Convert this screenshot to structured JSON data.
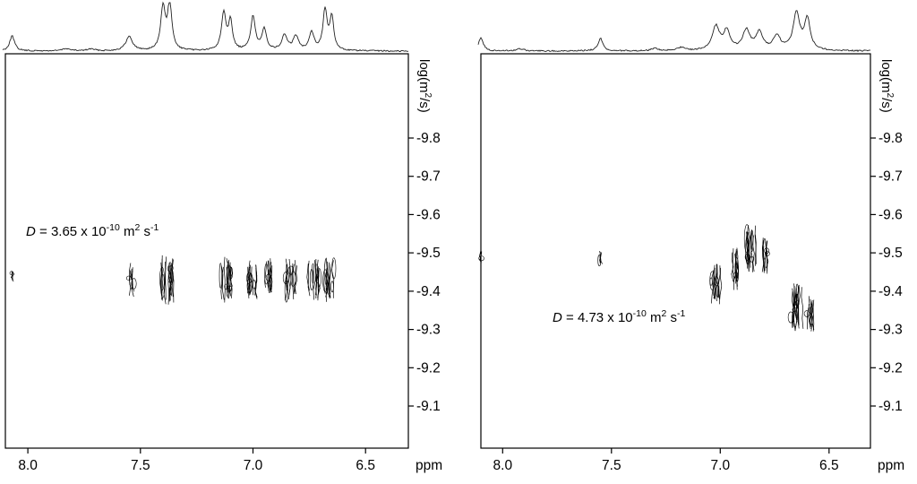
{
  "figure": {
    "description": "Two DOSY NMR spectra (2D diffusion contour plots with 1D proton trace on top)"
  },
  "chart_data": [
    {
      "type": "scatter",
      "name": "dosy-panel-left",
      "title": "",
      "xlabel": "ppm",
      "ylabel": "log(m2/s)",
      "ylabel_parts": {
        "pre": "log(m",
        "sup": "2",
        "post": "/s)"
      },
      "xlim": [
        8.1,
        6.31
      ],
      "ylim": [
        -10.02,
        -8.99
      ],
      "x_ticks": [
        "8.0",
        "7.5",
        "7.0",
        "6.5"
      ],
      "x_tick_values": [
        8.0,
        7.5,
        7.0,
        6.5
      ],
      "y_ticks": [
        "-9.8",
        "-9.7",
        "-9.6",
        "-9.5",
        "-9.4",
        "-9.3",
        "-9.2",
        "-9.1"
      ],
      "y_tick_values": [
        -9.8,
        -9.7,
        -9.6,
        -9.5,
        -9.4,
        -9.3,
        -9.2,
        -9.1
      ],
      "grid": false,
      "annotation": {
        "var": "D",
        "eq": " = 3.65 x 10",
        "exp": "-10",
        "unit1": " m",
        "unit1_exp": "2",
        "unit2": " s",
        "unit2_exp": "-1",
        "pos": {
          "ppm": 8.01,
          "logd": -9.555
        }
      },
      "trace_1d": {
        "peaks": [
          {
            "ppm": 8.07,
            "h": 0.32,
            "w": 0.013
          },
          {
            "ppm": 7.83,
            "h": 0.05,
            "w": 0.02
          },
          {
            "ppm": 7.72,
            "h": 0.04,
            "w": 0.02
          },
          {
            "ppm": 7.55,
            "h": 0.3,
            "w": 0.018
          },
          {
            "ppm": 7.4,
            "h": 0.9,
            "w": 0.012
          },
          {
            "ppm": 7.37,
            "h": 1.0,
            "w": 0.011
          },
          {
            "ppm": 7.13,
            "h": 0.8,
            "w": 0.012
          },
          {
            "ppm": 7.1,
            "h": 0.62,
            "w": 0.01
          },
          {
            "ppm": 7.0,
            "h": 0.72,
            "w": 0.012
          },
          {
            "ppm": 6.95,
            "h": 0.45,
            "w": 0.012
          },
          {
            "ppm": 6.86,
            "h": 0.32,
            "w": 0.014
          },
          {
            "ppm": 6.81,
            "h": 0.3,
            "w": 0.014
          },
          {
            "ppm": 6.74,
            "h": 0.38,
            "w": 0.013
          },
          {
            "ppm": 6.68,
            "h": 0.85,
            "w": 0.011
          },
          {
            "ppm": 6.65,
            "h": 0.7,
            "w": 0.01
          }
        ]
      },
      "clusters_2d": [
        {
          "ppm": 8.07,
          "logd": -9.44,
          "w": 0.01,
          "h": 0.03,
          "density": 1
        },
        {
          "ppm": 7.54,
          "logd": -9.43,
          "w": 0.025,
          "h": 0.09,
          "density": 2
        },
        {
          "ppm": 7.38,
          "logd": -9.43,
          "w": 0.06,
          "h": 0.13,
          "density": 6
        },
        {
          "ppm": 7.12,
          "logd": -9.43,
          "w": 0.055,
          "h": 0.12,
          "density": 5
        },
        {
          "ppm": 7.0,
          "logd": -9.43,
          "w": 0.04,
          "h": 0.11,
          "density": 4
        },
        {
          "ppm": 6.93,
          "logd": -9.44,
          "w": 0.03,
          "h": 0.1,
          "density": 3
        },
        {
          "ppm": 6.83,
          "logd": -9.43,
          "w": 0.05,
          "h": 0.11,
          "density": 4
        },
        {
          "ppm": 6.73,
          "logd": -9.43,
          "w": 0.05,
          "h": 0.11,
          "density": 4
        },
        {
          "ppm": 6.66,
          "logd": -9.43,
          "w": 0.04,
          "h": 0.12,
          "density": 4
        }
      ]
    },
    {
      "type": "scatter",
      "name": "dosy-panel-right",
      "title": "",
      "xlabel": "ppm",
      "ylabel": "log(m2/s)",
      "ylabel_parts": {
        "pre": "log(m",
        "sup": "2",
        "post": "/s)"
      },
      "xlim": [
        8.1,
        6.31
      ],
      "ylim": [
        -10.02,
        -8.99
      ],
      "x_ticks": [
        "8.0",
        "7.5",
        "7.0",
        "6.5"
      ],
      "x_tick_values": [
        8.0,
        7.5,
        7.0,
        6.5
      ],
      "y_ticks": [
        "-9.8",
        "-9.7",
        "-9.6",
        "-9.5",
        "-9.4",
        "-9.3",
        "-9.2",
        "-9.1"
      ],
      "y_tick_values": [
        -9.8,
        -9.7,
        -9.6,
        -9.5,
        -9.4,
        -9.3,
        -9.2,
        -9.1
      ],
      "grid": false,
      "annotation": {
        "var": "D",
        "eq": " = 4.73 x 10",
        "exp": "-10",
        "unit1": " m",
        "unit1_exp": "2",
        "unit2": " s",
        "unit2_exp": "-1",
        "pos": {
          "ppm": 7.77,
          "logd": -9.33
        }
      },
      "trace_1d": {
        "peaks": [
          {
            "ppm": 8.1,
            "h": 0.28,
            "w": 0.013
          },
          {
            "ppm": 7.92,
            "h": 0.05,
            "w": 0.02
          },
          {
            "ppm": 7.55,
            "h": 0.26,
            "w": 0.014
          },
          {
            "ppm": 7.3,
            "h": 0.05,
            "w": 0.02
          },
          {
            "ppm": 7.18,
            "h": 0.07,
            "w": 0.02
          },
          {
            "ppm": 7.02,
            "h": 0.5,
            "w": 0.02
          },
          {
            "ppm": 6.97,
            "h": 0.4,
            "w": 0.018
          },
          {
            "ppm": 6.88,
            "h": 0.42,
            "w": 0.02
          },
          {
            "ppm": 6.82,
            "h": 0.38,
            "w": 0.018
          },
          {
            "ppm": 6.74,
            "h": 0.3,
            "w": 0.02
          },
          {
            "ppm": 6.65,
            "h": 0.78,
            "w": 0.018
          },
          {
            "ppm": 6.6,
            "h": 0.65,
            "w": 0.016
          }
        ]
      },
      "clusters_2d": [
        {
          "ppm": 8.1,
          "logd": -9.49,
          "w": 0.012,
          "h": 0.035,
          "density": 1
        },
        {
          "ppm": 7.55,
          "logd": -9.49,
          "w": 0.012,
          "h": 0.04,
          "density": 1
        },
        {
          "ppm": 7.02,
          "logd": -9.42,
          "w": 0.045,
          "h": 0.11,
          "density": 4
        },
        {
          "ppm": 6.93,
          "logd": -9.46,
          "w": 0.03,
          "h": 0.13,
          "density": 3
        },
        {
          "ppm": 6.86,
          "logd": -9.51,
          "w": 0.05,
          "h": 0.13,
          "density": 5
        },
        {
          "ppm": 6.79,
          "logd": -9.49,
          "w": 0.03,
          "h": 0.1,
          "density": 3
        },
        {
          "ppm": 6.65,
          "logd": -9.36,
          "w": 0.055,
          "h": 0.13,
          "density": 5
        },
        {
          "ppm": 6.59,
          "logd": -9.34,
          "w": 0.035,
          "h": 0.1,
          "density": 3
        }
      ]
    }
  ]
}
